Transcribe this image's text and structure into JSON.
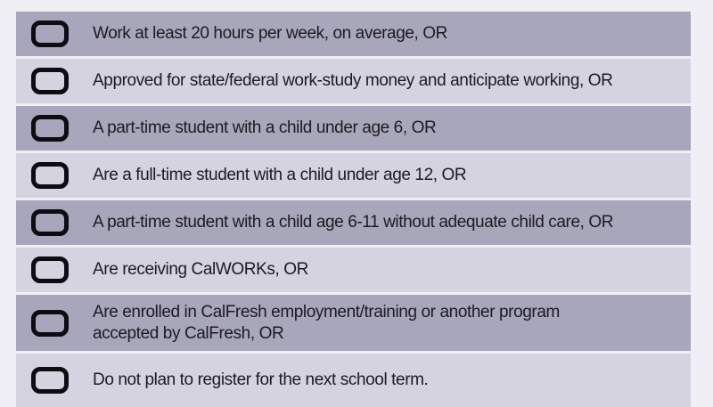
{
  "page": {
    "background_color": "#f0eff5",
    "row_dark_color": "#a8a6ba",
    "row_light_color": "#d5d3e0",
    "checkbox_border_color": "#0d0c13",
    "text_color": "#1b1a24"
  },
  "rows": [
    {
      "text": "Work at least 20 hours per week, on average, OR"
    },
    {
      "text": "Approved for state/federal work-study money and anticipate working, OR"
    },
    {
      "text": "A part-time student with a child under age 6, OR"
    },
    {
      "text": "Are a full-time student with a child under age 12, OR"
    },
    {
      "text": "A part-time student with a child age 6-11 without adequate child care, OR"
    },
    {
      "text": "Are receiving CalWORKs, OR"
    },
    {
      "text": "Are enrolled in CalFresh employment/training or another program accepted by CalFresh, OR"
    },
    {
      "text": "Do not plan to register for the next school term."
    }
  ]
}
